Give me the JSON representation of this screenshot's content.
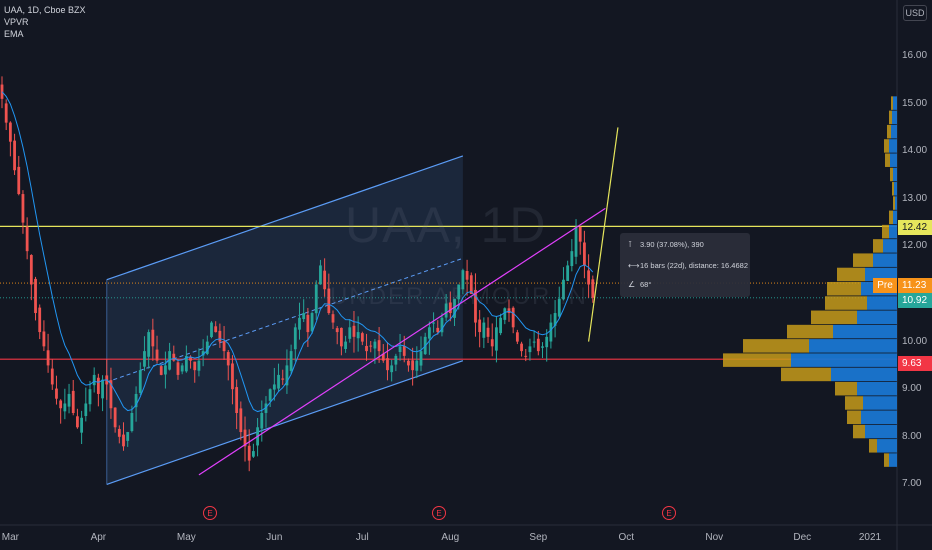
{
  "legend": {
    "symbol_line": "UAA, 1D, Cboe BZX",
    "indicators": [
      "VPVR",
      "EMA"
    ]
  },
  "currency_button": "USD",
  "watermark": {
    "symbol": "UAA, 1D",
    "name": "UNDER ARMOUR IN"
  },
  "measure_box": {
    "price_range": "3.90 (37.08%), 390",
    "bars_range": "16 bars (22d), distance: 16.4682",
    "angle": "68°"
  },
  "price_labels": {
    "pre_tag": "Pre",
    "resistance": "12.42",
    "pre_price": "11.23",
    "last_price": "10.92",
    "support": "9.63"
  },
  "earnings_marker": "E",
  "colors": {
    "background": "#131722",
    "up_candle": "#26a69a",
    "down_candle": "#ef5350",
    "ema": "#2196f3",
    "channel": "#5b9cf6",
    "trendline": "#e040fb",
    "resistance_line": "#e6e65c",
    "support_line": "#f23645",
    "vp_up": "#1976d2",
    "vp_down": "#c79b1a"
  },
  "chart_data": {
    "type": "candlestick",
    "y_ticks": [
      "16.00",
      "15.00",
      "14.00",
      "13.00",
      "12.00",
      "11.00",
      "10.00",
      "9.00",
      "8.00",
      "7.00"
    ],
    "x_ticks": [
      "Mar",
      "Apr",
      "May",
      "Jun",
      "Jul",
      "Aug",
      "Sep",
      "Oct",
      "Nov",
      "Dec",
      "2021"
    ],
    "ylim": [
      6.8,
      16.8
    ],
    "closes": [
      15.1,
      14.6,
      14.2,
      13.6,
      13.1,
      12.5,
      11.9,
      11.2,
      10.6,
      10.2,
      9.9,
      9.5,
      9.1,
      8.8,
      8.6,
      8.7,
      8.9,
      8.5,
      8.2,
      8.4,
      8.7,
      9.0,
      9.3,
      8.9,
      9.2,
      9.1,
      8.6,
      8.2,
      8.0,
      7.8,
      8.1,
      8.5,
      8.9,
      9.4,
      9.8,
      10.2,
      9.9,
      9.6,
      9.3,
      9.5,
      9.8,
      9.6,
      9.3,
      9.5,
      9.7,
      9.6,
      9.4,
      9.6,
      9.8,
      10.0,
      10.4,
      10.2,
      10.0,
      9.8,
      9.5,
      9.0,
      8.5,
      8.1,
      7.8,
      7.5,
      7.7,
      8.2,
      8.5,
      8.7,
      9.0,
      9.1,
      9.3,
      9.2,
      9.5,
      9.8,
      10.3,
      10.5,
      10.6,
      10.2,
      10.6,
      11.2,
      11.6,
      11.1,
      10.6,
      10.4,
      10.2,
      9.9,
      10.0,
      10.3,
      10.1,
      10.2,
      10.0,
      9.8,
      9.9,
      10.0,
      9.8,
      9.6,
      9.4,
      9.5,
      9.7,
      9.9,
      9.7,
      9.5,
      9.4,
      9.6,
      9.8,
      10.1,
      10.3,
      10.4,
      10.2,
      10.5,
      10.8,
      10.6,
      10.9,
      11.2,
      11.5,
      11.3,
      11.0,
      10.4,
      10.2,
      10.4,
      10.1,
      9.9,
      10.3,
      10.5,
      10.7,
      10.6,
      10.3,
      10.0,
      9.8,
      9.7,
      9.9,
      10.0,
      9.8,
      9.9,
      10.1,
      10.4,
      10.6,
      10.9,
      11.3,
      11.6,
      11.9,
      12.4,
      12.1,
      11.6,
      11.2,
      10.92
    ],
    "channel_upper": [
      [
        25,
        11.3
      ],
      [
        110,
        13.9
      ]
    ],
    "channel_lower": [
      [
        25,
        7.0
      ],
      [
        110,
        9.6
      ]
    ],
    "channel_mid": [
      [
        25,
        9.15
      ],
      [
        110,
        11.75
      ]
    ],
    "trendline": [
      [
        47,
        7.2
      ],
      [
        144,
        12.8
      ]
    ],
    "measure_line": [
      [
        140,
        10.0
      ],
      [
        147,
        14.5
      ]
    ],
    "resistance": 12.42,
    "support": 9.63,
    "last_price": 10.92,
    "pre_price": 11.23,
    "volume_profile": [
      {
        "price": 15.0,
        "up": 2,
        "down": 4
      },
      {
        "price": 14.7,
        "up": 3,
        "down": 5
      },
      {
        "price": 14.4,
        "up": 4,
        "down": 6
      },
      {
        "price": 14.1,
        "up": 5,
        "down": 8
      },
      {
        "price": 13.8,
        "up": 5,
        "down": 7
      },
      {
        "price": 13.5,
        "up": 3,
        "down": 4
      },
      {
        "price": 13.2,
        "up": 2,
        "down": 3
      },
      {
        "price": 12.9,
        "up": 2,
        "down": 2
      },
      {
        "price": 12.6,
        "up": 4,
        "down": 4
      },
      {
        "price": 12.3,
        "up": 7,
        "down": 8
      },
      {
        "price": 12.0,
        "up": 10,
        "down": 14
      },
      {
        "price": 11.7,
        "up": 20,
        "down": 24
      },
      {
        "price": 11.4,
        "up": 28,
        "down": 32
      },
      {
        "price": 11.1,
        "up": 34,
        "down": 36
      },
      {
        "price": 10.8,
        "up": 42,
        "down": 30
      },
      {
        "price": 10.5,
        "up": 46,
        "down": 40
      },
      {
        "price": 10.2,
        "up": 46,
        "down": 64
      },
      {
        "price": 9.9,
        "up": 66,
        "down": 88
      },
      {
        "price": 9.6,
        "up": 68,
        "down": 106
      },
      {
        "price": 9.3,
        "up": 50,
        "down": 66
      },
      {
        "price": 9.0,
        "up": 22,
        "down": 40
      },
      {
        "price": 8.7,
        "up": 18,
        "down": 34
      },
      {
        "price": 8.4,
        "up": 14,
        "down": 36
      },
      {
        "price": 8.1,
        "up": 12,
        "down": 32
      },
      {
        "price": 7.8,
        "up": 8,
        "down": 20
      },
      {
        "price": 7.5,
        "up": 5,
        "down": 8
      }
    ]
  }
}
